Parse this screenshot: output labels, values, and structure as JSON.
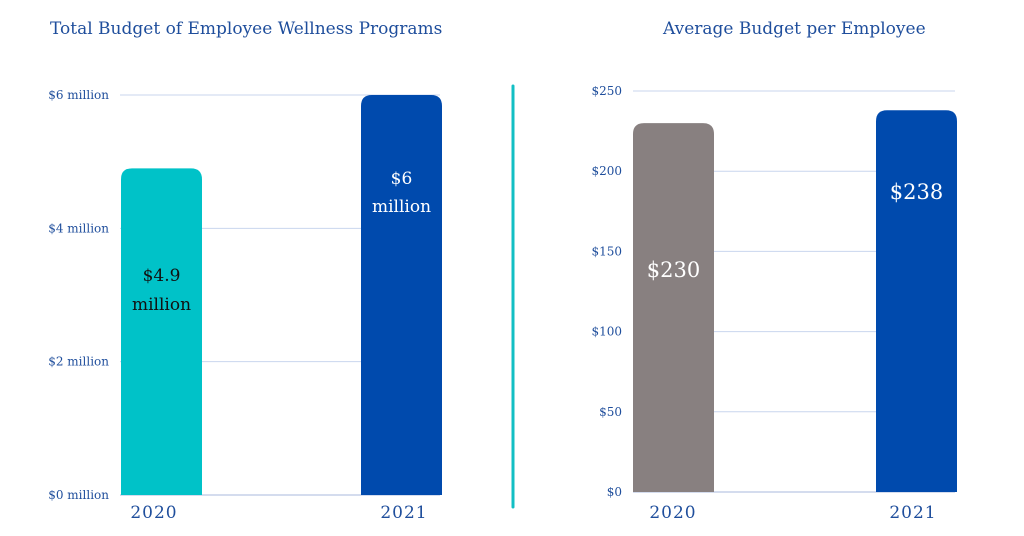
{
  "colors": {
    "teal": "#00c2c8",
    "blue": "#004aad",
    "gray": "#888080",
    "divider": "#12bfc4"
  },
  "chart_data": [
    {
      "type": "bar",
      "title": "Total Budget of Employee Wellness Programs",
      "categories": [
        "2020",
        "2021"
      ],
      "values": [
        4.9,
        6
      ],
      "unit": "million",
      "data_labels": [
        [
          "$4.9",
          "million"
        ],
        [
          "$6",
          "million"
        ]
      ],
      "ylim": [
        0,
        6
      ],
      "yticks": [
        0,
        2,
        4,
        6
      ],
      "ytick_labels": [
        "$0 million",
        "$2 million",
        "$4 million",
        "$6 million"
      ],
      "bar_colors": [
        "#00c2c8",
        "#004aad"
      ],
      "label_colors": [
        "dark",
        "light"
      ],
      "grid": true,
      "xlabel": "",
      "ylabel": ""
    },
    {
      "type": "bar",
      "title": "Average Budget per Employee",
      "categories": [
        "2020",
        "2021"
      ],
      "values": [
        230,
        238
      ],
      "data_labels": [
        [
          "$230"
        ],
        [
          "$238"
        ]
      ],
      "ylim": [
        0,
        250
      ],
      "yticks": [
        0,
        50,
        100,
        150,
        200,
        250
      ],
      "ytick_labels": [
        "$0",
        "$50",
        "$100",
        "$150",
        "$200",
        "$250"
      ],
      "bar_colors": [
        "#888080",
        "#004aad"
      ],
      "label_colors": [
        "big",
        "big"
      ],
      "grid": true,
      "xlabel": "",
      "ylabel": ""
    }
  ]
}
